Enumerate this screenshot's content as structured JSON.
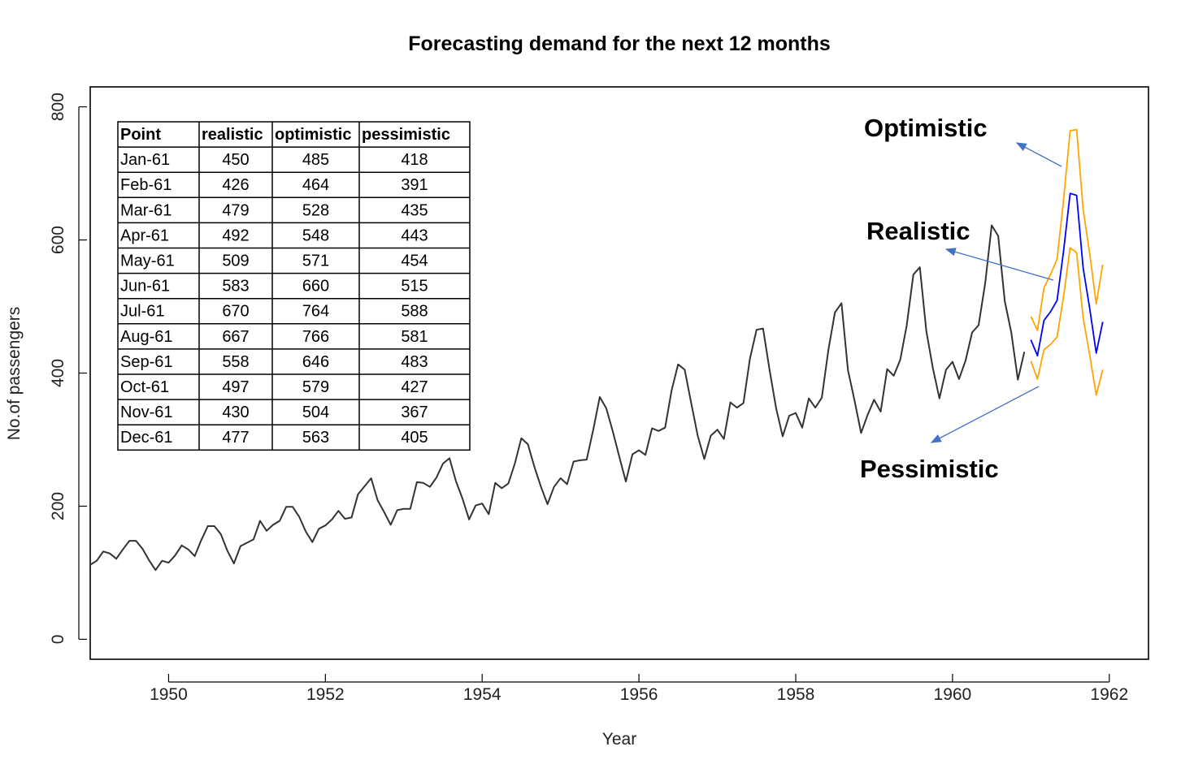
{
  "chart_data": {
    "type": "line",
    "title": "Forecasting demand for the next 12 months",
    "xlabel": "Year",
    "ylabel": "No.of passengers",
    "xlim": [
      1949,
      1962.5
    ],
    "ylim": [
      -30,
      830
    ],
    "x_ticks": [
      "1950",
      "1952",
      "1954",
      "1956",
      "1958",
      "1960",
      "1962"
    ],
    "y_ticks": [
      "0",
      "200",
      "400",
      "600",
      "800"
    ],
    "grid": false,
    "legend": "none",
    "series": [
      {
        "x_start": 1949.0,
        "x_step": 0.0833333,
        "color": "#333333",
        "values": [
          112,
          118,
          132,
          129,
          121,
          135,
          148,
          148,
          136,
          119,
          104,
          118,
          115,
          126,
          141,
          135,
          125,
          149,
          170,
          170,
          158,
          133,
          114,
          140,
          145,
          150,
          178,
          163,
          172,
          178,
          199,
          199,
          184,
          162,
          146,
          166,
          171,
          180,
          193,
          181,
          183,
          218,
          230,
          242,
          209,
          191,
          172,
          194,
          196,
          196,
          236,
          235,
          229,
          243,
          264,
          272,
          237,
          211,
          180,
          201,
          204,
          188,
          235,
          227,
          234,
          264,
          302,
          293,
          259,
          229,
          203,
          229,
          242,
          233,
          267,
          269,
          270,
          315,
          364,
          347,
          312,
          274,
          237,
          278,
          284,
          277,
          317,
          313,
          318,
          374,
          413,
          405,
          355,
          306,
          271,
          306,
          315,
          301,
          356,
          348,
          355,
          422,
          465,
          467,
          404,
          347,
          305,
          336,
          340,
          318,
          362,
          348,
          363,
          435,
          491,
          505,
          404,
          359,
          310,
          337,
          360,
          342,
          406,
          396,
          420,
          472,
          548,
          559,
          463,
          407,
          362,
          405,
          417,
          391,
          419,
          461,
          472,
          535,
          622,
          606,
          508,
          461,
          390,
          432
        ]
      },
      {
        "name": "realistic",
        "x_start": 1961.0,
        "x_step": 0.0833333,
        "color": "#0000ff",
        "values": [
          450,
          426,
          479,
          492,
          509,
          583,
          670,
          667,
          558,
          497,
          430,
          477
        ]
      },
      {
        "name": "optimistic",
        "x_start": 1961.0,
        "x_step": 0.0833333,
        "color": "#ffa500",
        "values": [
          485,
          464,
          528,
          548,
          571,
          660,
          764,
          766,
          646,
          579,
          504,
          563
        ]
      },
      {
        "name": "pessimistic",
        "x_start": 1961.0,
        "x_step": 0.0833333,
        "color": "#ffa500",
        "values": [
          418,
          391,
          435,
          443,
          454,
          515,
          588,
          581,
          483,
          427,
          367,
          405
        ]
      }
    ],
    "annotations": [
      {
        "text": "Optimistic",
        "arrow_color": "#4472c4"
      },
      {
        "text": "Realistic",
        "arrow_color": "#4472c4"
      },
      {
        "text": "Pessimistic",
        "arrow_color": "#4472c4"
      }
    ],
    "table": {
      "headers": [
        "Point",
        "realistic",
        "optimistic",
        "pessimistic"
      ],
      "rows": [
        [
          "Jan-61",
          "450",
          "485",
          "418"
        ],
        [
          "Feb-61",
          "426",
          "464",
          "391"
        ],
        [
          "Mar-61",
          "479",
          "528",
          "435"
        ],
        [
          "Apr-61",
          "492",
          "548",
          "443"
        ],
        [
          "May-61",
          "509",
          "571",
          "454"
        ],
        [
          "Jun-61",
          "583",
          "660",
          "515"
        ],
        [
          "Jul-61",
          "670",
          "764",
          "588"
        ],
        [
          "Aug-61",
          "667",
          "766",
          "581"
        ],
        [
          "Sep-61",
          "558",
          "646",
          "483"
        ],
        [
          "Oct-61",
          "497",
          "579",
          "427"
        ],
        [
          "Nov-61",
          "430",
          "504",
          "367"
        ],
        [
          "Dec-61",
          "477",
          "563",
          "405"
        ]
      ]
    }
  }
}
